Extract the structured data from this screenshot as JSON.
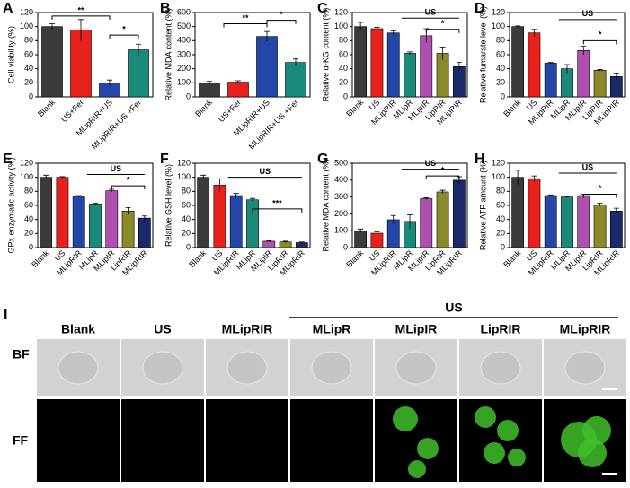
{
  "chart_data": [
    {
      "type": "bar",
      "label": "A",
      "ylabel": "Cell viability (%)",
      "categories": [
        "Blank",
        "US+Fer",
        "MLipRIR+US",
        "MLipRIR+US +Fer"
      ],
      "values": [
        100,
        95,
        20,
        67
      ],
      "errors": [
        4,
        15,
        4,
        8
      ],
      "colors": [
        "#3b3b3b",
        "#e8211d",
        "#2346a8",
        "#1a8a7a"
      ],
      "ylim": [
        0,
        120
      ],
      "yticks": [
        0,
        20,
        40,
        60,
        80,
        100,
        120
      ],
      "annotations": [
        "**",
        "*"
      ]
    },
    {
      "type": "bar",
      "label": "B",
      "ylabel": "Relative MDA content (%)",
      "categories": [
        "Blank",
        "US+Fer",
        "MLipRIR+US",
        "MLipRIR+US +Fer"
      ],
      "values": [
        100,
        105,
        430,
        245
      ],
      "errors": [
        10,
        10,
        35,
        25
      ],
      "colors": [
        "#3b3b3b",
        "#e8211d",
        "#2346a8",
        "#1a8a7a"
      ],
      "ylim": [
        0,
        600
      ],
      "yticks": [
        0,
        100,
        200,
        300,
        400,
        500,
        600
      ],
      "annotations": [
        "**",
        "*"
      ]
    },
    {
      "type": "bar",
      "label": "C",
      "ylabel": "Relative α-KG content (%)",
      "categories": [
        "Blank",
        "US",
        "MLipRIR",
        "MLipR",
        "MLipIR",
        "LipRIR",
        "MLipRIR"
      ],
      "values": [
        100,
        97,
        91,
        62,
        87,
        62,
        43
      ],
      "errors": [
        6,
        2,
        3,
        2,
        10,
        9,
        6
      ],
      "colors": [
        "#3b3b3b",
        "#e8211d",
        "#2346a8",
        "#1a8a7a",
        "#b04fb0",
        "#8a8a2a",
        "#1a2a6a"
      ],
      "ylim": [
        0,
        120
      ],
      "yticks": [
        0,
        20,
        40,
        60,
        80,
        100,
        120
      ],
      "annotations": [
        "US",
        "*"
      ]
    },
    {
      "type": "bar",
      "label": "D",
      "ylabel": "Relative fumarate level (%)",
      "categories": [
        "Blank",
        "US",
        "MLipRIR",
        "MLipR",
        "MLipIR",
        "LipRIR",
        "MLipRIR"
      ],
      "values": [
        100,
        91,
        48,
        40,
        66,
        38,
        29
      ],
      "errors": [
        1,
        5,
        1,
        6,
        6,
        1,
        5
      ],
      "colors": [
        "#3b3b3b",
        "#e8211d",
        "#2346a8",
        "#1a8a7a",
        "#b04fb0",
        "#8a8a2a",
        "#1a2a6a"
      ],
      "ylim": [
        0,
        120
      ],
      "yticks": [
        0,
        20,
        40,
        60,
        80,
        100,
        120
      ],
      "annotations": [
        "US",
        "*"
      ]
    },
    {
      "type": "bar",
      "label": "E",
      "ylabel": "GPx enzymatic activity (%)",
      "categories": [
        "Blank",
        "US",
        "MLipRIR",
        "MLipR",
        "MLipIR",
        "LipRIR",
        "MLipRIR"
      ],
      "values": [
        100,
        100,
        73,
        62,
        81,
        52,
        42
      ],
      "errors": [
        3,
        1,
        1,
        1,
        2,
        5,
        3
      ],
      "colors": [
        "#3b3b3b",
        "#e8211d",
        "#2346a8",
        "#1a8a7a",
        "#b04fb0",
        "#8a8a2a",
        "#1a2a6a"
      ],
      "ylim": [
        0,
        120
      ],
      "yticks": [
        0,
        20,
        40,
        60,
        80,
        100,
        120
      ],
      "annotations": [
        "US",
        "*"
      ]
    },
    {
      "type": "bar",
      "label": "F",
      "ylabel": "Relative GSH level (%)",
      "categories": [
        "Blank",
        "US",
        "MLipRIR",
        "MLipR",
        "MLipIR",
        "LipRIR",
        "MLipRIR"
      ],
      "values": [
        100,
        89,
        74,
        68,
        9,
        8,
        7
      ],
      "errors": [
        3,
        9,
        3,
        2,
        1,
        1,
        1
      ],
      "colors": [
        "#3b3b3b",
        "#e8211d",
        "#2346a8",
        "#1a8a7a",
        "#b04fb0",
        "#8a8a2a",
        "#1a2a6a"
      ],
      "ylim": [
        0,
        120
      ],
      "yticks": [
        0,
        20,
        40,
        60,
        80,
        100,
        120
      ],
      "annotations": [
        "US",
        "***"
      ]
    },
    {
      "type": "bar",
      "label": "G",
      "ylabel": "Relative MDA content (%)",
      "categories": [
        "Blank",
        "US",
        "MLipRIR",
        "MLipR",
        "MLipIR",
        "LipRIR",
        "MLipRIR"
      ],
      "values": [
        100,
        85,
        165,
        155,
        290,
        330,
        400
      ],
      "errors": [
        10,
        8,
        25,
        40,
        5,
        10,
        20
      ],
      "colors": [
        "#3b3b3b",
        "#e8211d",
        "#2346a8",
        "#1a8a7a",
        "#b04fb0",
        "#8a8a2a",
        "#1a2a6a"
      ],
      "ylim": [
        0,
        500
      ],
      "yticks": [
        0,
        100,
        200,
        300,
        400,
        500
      ],
      "annotations": [
        "US",
        "*"
      ]
    },
    {
      "type": "bar",
      "label": "H",
      "ylabel": "Relative ATP amount (%)",
      "categories": [
        "Blank",
        "US",
        "MLipRIR",
        "MLipR",
        "MLipIR",
        "LipRIR",
        "MLipRIR"
      ],
      "values": [
        100,
        98,
        74,
        72,
        74,
        61,
        52
      ],
      "errors": [
        10,
        4,
        1,
        1,
        2,
        2,
        4
      ],
      "colors": [
        "#3b3b3b",
        "#e8211d",
        "#2346a8",
        "#1a8a7a",
        "#b04fb0",
        "#8a8a2a",
        "#1a2a6a"
      ],
      "ylim": [
        0,
        120
      ],
      "yticks": [
        0,
        20,
        40,
        60,
        80,
        100,
        120
      ],
      "annotations": [
        "US",
        "*"
      ]
    }
  ],
  "image_panel": {
    "label": "I",
    "group_label": "US",
    "columns": [
      "Blank",
      "US",
      "MLipRIR",
      "MLipR",
      "MLipIR",
      "LipRIR",
      "MLipRIR"
    ],
    "rows": [
      "BF",
      "FF"
    ]
  }
}
